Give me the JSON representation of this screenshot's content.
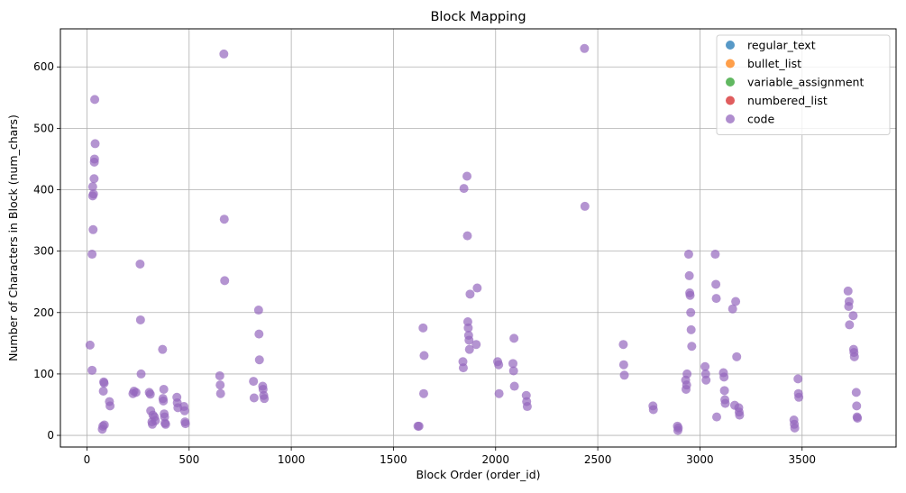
{
  "chart_data": {
    "type": "scatter",
    "title": "Block Mapping",
    "xlabel": "Block Order (order_id)",
    "ylabel": "Number of Characters in Block (num_chars)",
    "xlim": [
      -130,
      3960
    ],
    "ylim": [
      -19,
      662
    ],
    "xticks": [
      0,
      500,
      1000,
      1500,
      2000,
      2500,
      3000,
      3500
    ],
    "yticks": [
      0,
      100,
      200,
      300,
      400,
      500,
      600
    ],
    "grid": true,
    "legend_position": "top-right",
    "series": [
      {
        "name": "regular_text",
        "color": "#1f77b4",
        "points": []
      },
      {
        "name": "bullet_list",
        "color": "#ff7f0e",
        "points": []
      },
      {
        "name": "variable_assignment",
        "color": "#2ca02c",
        "points": []
      },
      {
        "name": "numbered_list",
        "color": "#d62728",
        "points": []
      },
      {
        "name": "code",
        "color": "#9467bd",
        "points": [
          [
            15,
            147
          ],
          [
            25,
            106
          ],
          [
            25,
            295
          ],
          [
            28,
            390
          ],
          [
            28,
            405
          ],
          [
            30,
            335
          ],
          [
            32,
            393
          ],
          [
            35,
            418
          ],
          [
            36,
            445
          ],
          [
            37,
            450
          ],
          [
            38,
            547
          ],
          [
            40,
            475
          ],
          [
            75,
            10
          ],
          [
            78,
            15
          ],
          [
            80,
            72
          ],
          [
            82,
            87
          ],
          [
            84,
            85
          ],
          [
            85,
            17
          ],
          [
            110,
            55
          ],
          [
            113,
            48
          ],
          [
            225,
            68
          ],
          [
            230,
            72
          ],
          [
            240,
            70
          ],
          [
            260,
            279
          ],
          [
            262,
            188
          ],
          [
            265,
            100
          ],
          [
            305,
            70
          ],
          [
            310,
            67
          ],
          [
            312,
            40
          ],
          [
            318,
            22
          ],
          [
            320,
            18
          ],
          [
            323,
            33
          ],
          [
            330,
            30
          ],
          [
            335,
            24
          ],
          [
            370,
            140
          ],
          [
            372,
            60
          ],
          [
            374,
            56
          ],
          [
            376,
            75
          ],
          [
            378,
            35
          ],
          [
            380,
            30
          ],
          [
            382,
            20
          ],
          [
            385,
            18
          ],
          [
            440,
            62
          ],
          [
            442,
            53
          ],
          [
            445,
            45
          ],
          [
            475,
            47
          ],
          [
            478,
            40
          ],
          [
            480,
            22
          ],
          [
            482,
            19
          ],
          [
            650,
            97
          ],
          [
            652,
            82
          ],
          [
            654,
            68
          ],
          [
            670,
            621
          ],
          [
            672,
            352
          ],
          [
            674,
            252
          ],
          [
            815,
            88
          ],
          [
            818,
            61
          ],
          [
            840,
            204
          ],
          [
            842,
            165
          ],
          [
            844,
            123
          ],
          [
            860,
            80
          ],
          [
            862,
            75
          ],
          [
            865,
            65
          ],
          [
            868,
            60
          ],
          [
            1620,
            15
          ],
          [
            1625,
            15
          ],
          [
            1645,
            175
          ],
          [
            1650,
            130
          ],
          [
            1648,
            68
          ],
          [
            1840,
            120
          ],
          [
            1842,
            110
          ],
          [
            1845,
            402
          ],
          [
            1860,
            422
          ],
          [
            1862,
            325
          ],
          [
            1864,
            185
          ],
          [
            1866,
            175
          ],
          [
            1868,
            163
          ],
          [
            1870,
            155
          ],
          [
            1872,
            140
          ],
          [
            1875,
            230
          ],
          [
            1905,
            148
          ],
          [
            1910,
            240
          ],
          [
            2010,
            120
          ],
          [
            2015,
            115
          ],
          [
            2017,
            68
          ],
          [
            2085,
            117
          ],
          [
            2088,
            105
          ],
          [
            2090,
            158
          ],
          [
            2092,
            80
          ],
          [
            2150,
            65
          ],
          [
            2152,
            55
          ],
          [
            2155,
            47
          ],
          [
            2435,
            630
          ],
          [
            2437,
            373
          ],
          [
            2625,
            148
          ],
          [
            2627,
            115
          ],
          [
            2630,
            98
          ],
          [
            2770,
            48
          ],
          [
            2772,
            42
          ],
          [
            2890,
            15
          ],
          [
            2892,
            8
          ],
          [
            2894,
            12
          ],
          [
            2930,
            90
          ],
          [
            2932,
            75
          ],
          [
            2935,
            82
          ],
          [
            2937,
            100
          ],
          [
            2945,
            295
          ],
          [
            2948,
            260
          ],
          [
            2950,
            232
          ],
          [
            2952,
            228
          ],
          [
            2955,
            200
          ],
          [
            2957,
            172
          ],
          [
            2960,
            145
          ],
          [
            3025,
            112
          ],
          [
            3028,
            100
          ],
          [
            3030,
            90
          ],
          [
            3075,
            295
          ],
          [
            3078,
            246
          ],
          [
            3080,
            223
          ],
          [
            3082,
            30
          ],
          [
            3115,
            102
          ],
          [
            3118,
            95
          ],
          [
            3120,
            73
          ],
          [
            3122,
            58
          ],
          [
            3124,
            52
          ],
          [
            3160,
            206
          ],
          [
            3170,
            49
          ],
          [
            3175,
            218
          ],
          [
            3180,
            128
          ],
          [
            3190,
            45
          ],
          [
            3192,
            38
          ],
          [
            3194,
            33
          ],
          [
            3460,
            25
          ],
          [
            3462,
            18
          ],
          [
            3464,
            12
          ],
          [
            3480,
            92
          ],
          [
            3482,
            68
          ],
          [
            3484,
            62
          ],
          [
            3725,
            235
          ],
          [
            3728,
            210
          ],
          [
            3730,
            218
          ],
          [
            3732,
            180
          ],
          [
            3750,
            195
          ],
          [
            3752,
            140
          ],
          [
            3754,
            135
          ],
          [
            3756,
            128
          ],
          [
            3765,
            70
          ],
          [
            3767,
            48
          ],
          [
            3769,
            30
          ],
          [
            3771,
            28
          ]
        ]
      }
    ]
  }
}
